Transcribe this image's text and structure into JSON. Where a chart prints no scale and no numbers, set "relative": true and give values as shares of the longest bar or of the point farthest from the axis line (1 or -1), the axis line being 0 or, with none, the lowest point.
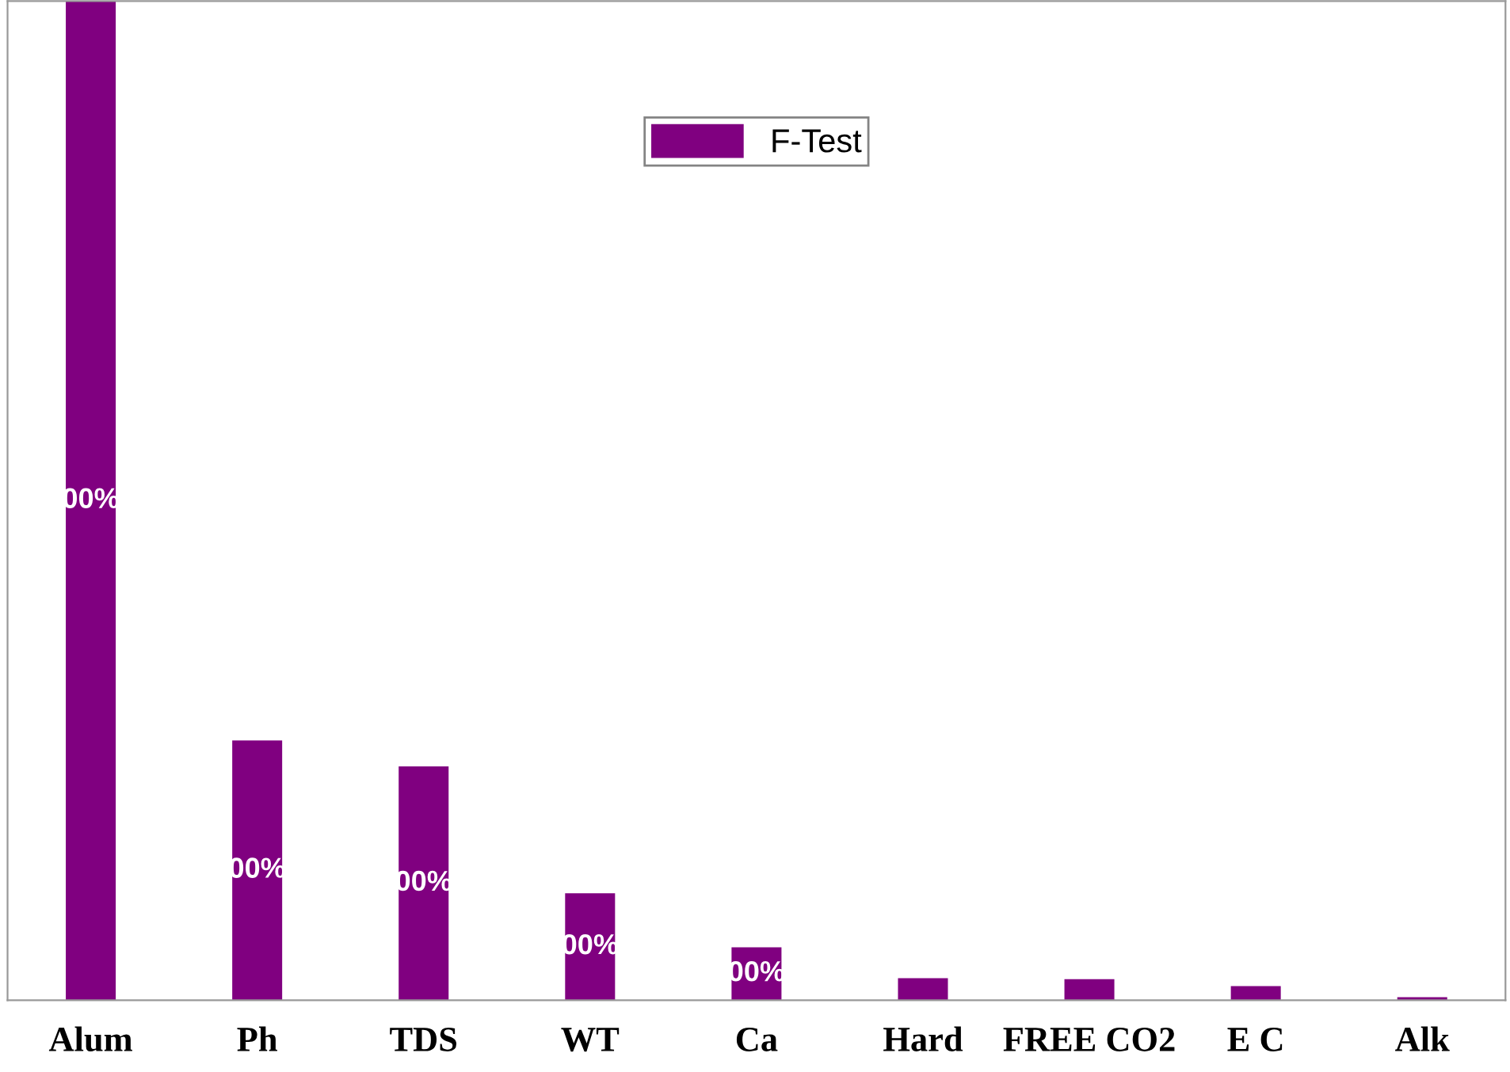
{
  "chart_data": {
    "type": "bar",
    "relative": true,
    "categories": [
      "Alum",
      "Ph",
      "TDS",
      "WT",
      "Ca",
      "Hard",
      "FREE CO2",
      "E C",
      "Alk"
    ],
    "series": [
      {
        "name": "F-Test",
        "color": "#800080",
        "values": [
          1,
          0.26,
          0.234,
          0.107,
          0.053,
          0.022,
          0.021,
          0.014,
          0.003
        ]
      }
    ],
    "value_labels": [
      "00%",
      "00%",
      "00%",
      "00%",
      "00%",
      null,
      null,
      null,
      null
    ],
    "legend": "top",
    "grid": false
  }
}
